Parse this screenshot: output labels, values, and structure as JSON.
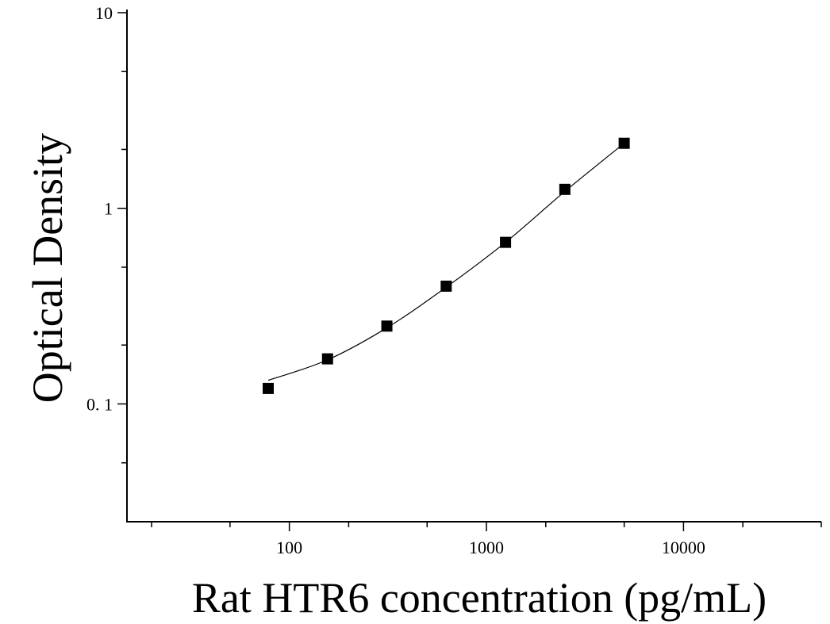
{
  "chart_data": {
    "type": "scatter",
    "title": "",
    "xlabel": "Rat HTR6 concentration (pg/mL)",
    "ylabel": "Optical Density",
    "x_scale": "log",
    "y_scale": "log",
    "xlim": [
      15,
      50000
    ],
    "ylim": [
      0.025,
      10
    ],
    "x_ticks": [
      {
        "value": 100,
        "label": "100"
      },
      {
        "value": 1000,
        "label": "1000"
      },
      {
        "value": 10000,
        "label": "10000"
      }
    ],
    "y_ticks": [
      {
        "value": 0.1,
        "label": "0. 1"
      },
      {
        "value": 1,
        "label": "1"
      },
      {
        "value": 10,
        "label": "10"
      }
    ],
    "grid": false,
    "marker": "square",
    "color": "#000000",
    "series": [
      {
        "x": [
          78.125,
          156.25,
          312.5,
          625,
          1250,
          2500,
          5000
        ],
        "y": [
          0.12,
          0.17,
          0.25,
          0.4,
          0.67,
          1.25,
          2.15
        ]
      }
    ],
    "fit_curve": {
      "x": [
        78.125,
        156.25,
        312.5,
        625,
        1250,
        2500,
        5000
      ],
      "y": [
        0.132,
        0.168,
        0.245,
        0.395,
        0.67,
        1.22,
        2.15
      ]
    }
  }
}
